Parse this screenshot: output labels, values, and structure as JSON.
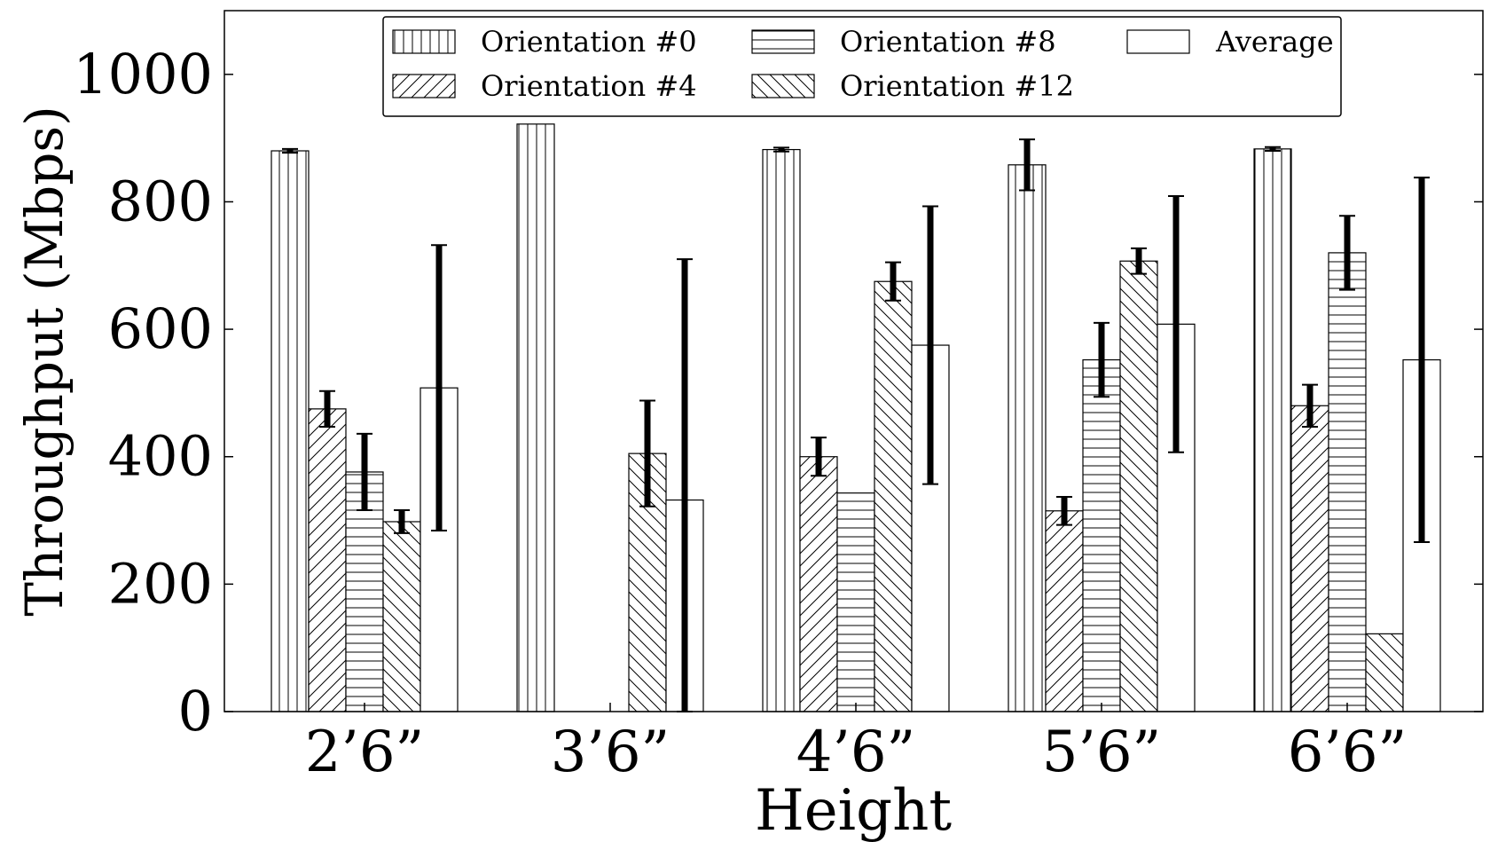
{
  "chart_data": {
    "type": "bar",
    "title": "",
    "xlabel": "Height",
    "ylabel": "Throughput (Mbps)",
    "ylim": [
      0,
      1100
    ],
    "yticks": [
      0,
      200,
      400,
      600,
      800,
      1000
    ],
    "categories": [
      "2’6”",
      "3’6”",
      "4’6”",
      "5’6”",
      "6’6”"
    ],
    "legend_position": "top-center",
    "grid": false,
    "series": [
      {
        "name": "Orientation #0",
        "pattern": "vertical",
        "values": [
          880,
          922,
          882,
          858,
          883
        ],
        "errors": [
          3,
          0,
          3,
          40,
          3
        ]
      },
      {
        "name": "Orientation #4",
        "pattern": "diag-up",
        "values": [
          475,
          0,
          400,
          315,
          480
        ],
        "errors": [
          28,
          0,
          30,
          22,
          33
        ]
      },
      {
        "name": "Orientation #8",
        "pattern": "horizontal",
        "values": [
          376,
          0,
          343,
          552,
          720
        ],
        "errors": [
          60,
          0,
          0,
          58,
          58
        ]
      },
      {
        "name": "Orientation #12",
        "pattern": "diag-down",
        "values": [
          298,
          405,
          675,
          707,
          122
        ],
        "errors": [
          18,
          83,
          30,
          20,
          0
        ]
      },
      {
        "name": "Average",
        "pattern": "none",
        "values": [
          508,
          332,
          575,
          608,
          552
        ],
        "errors": [
          224,
          378,
          218,
          201,
          286
        ]
      }
    ]
  }
}
